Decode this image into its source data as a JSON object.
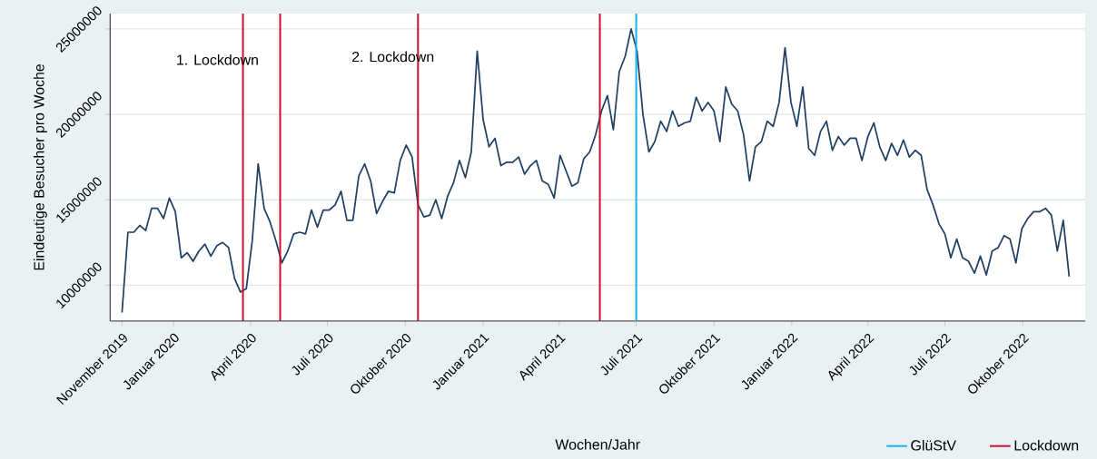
{
  "chart_data": {
    "type": "line",
    "xlabel": "Wochen/Jahr",
    "ylabel": "Eindeutige Besucher pro Woche",
    "x": [
      "2019-11-01",
      "2019-11-08",
      "2019-11-15",
      "2019-11-22",
      "2019-11-29",
      "2019-12-06",
      "2019-12-13",
      "2019-12-20",
      "2019-12-27",
      "2020-01-03",
      "2020-01-10",
      "2020-01-17",
      "2020-01-24",
      "2020-01-31",
      "2020-02-07",
      "2020-02-14",
      "2020-02-21",
      "2020-02-28",
      "2020-03-06",
      "2020-03-13",
      "2020-03-20",
      "2020-03-27",
      "2020-04-03",
      "2020-04-10",
      "2020-04-17",
      "2020-04-24",
      "2020-05-01",
      "2020-05-08",
      "2020-05-15",
      "2020-05-22",
      "2020-05-29",
      "2020-06-05",
      "2020-06-12",
      "2020-06-19",
      "2020-06-26",
      "2020-07-03",
      "2020-07-10",
      "2020-07-17",
      "2020-07-24",
      "2020-07-31",
      "2020-08-07",
      "2020-08-14",
      "2020-08-21",
      "2020-08-28",
      "2020-09-04",
      "2020-09-11",
      "2020-09-18",
      "2020-09-25",
      "2020-10-02",
      "2020-10-09",
      "2020-10-16",
      "2020-10-23",
      "2020-10-30",
      "2020-11-06",
      "2020-11-13",
      "2020-11-20",
      "2020-11-27",
      "2020-12-04",
      "2020-12-11",
      "2020-12-18",
      "2020-12-25",
      "2021-01-01",
      "2021-01-08",
      "2021-01-15",
      "2021-01-22",
      "2021-01-29",
      "2021-02-05",
      "2021-02-12",
      "2021-02-19",
      "2021-02-26",
      "2021-03-05",
      "2021-03-12",
      "2021-03-19",
      "2021-03-26",
      "2021-04-02",
      "2021-04-09",
      "2021-04-16",
      "2021-04-23",
      "2021-04-30",
      "2021-05-07",
      "2021-05-14",
      "2021-05-21",
      "2021-05-28",
      "2021-06-04",
      "2021-06-11",
      "2021-06-18",
      "2021-06-25",
      "2021-07-02",
      "2021-07-09",
      "2021-07-16",
      "2021-07-23",
      "2021-07-30",
      "2021-08-06",
      "2021-08-13",
      "2021-08-20",
      "2021-08-27",
      "2021-09-03",
      "2021-09-10",
      "2021-09-17",
      "2021-09-24",
      "2021-10-01",
      "2021-10-08",
      "2021-10-15",
      "2021-10-22",
      "2021-10-29",
      "2021-11-05",
      "2021-11-12",
      "2021-11-19",
      "2021-11-26",
      "2021-12-03",
      "2021-12-10",
      "2021-12-17",
      "2021-12-24",
      "2021-12-31",
      "2022-01-07",
      "2022-01-14",
      "2022-01-21",
      "2022-01-28",
      "2022-02-04",
      "2022-02-11",
      "2022-02-18",
      "2022-02-25",
      "2022-03-04",
      "2022-03-11",
      "2022-03-18",
      "2022-03-25",
      "2022-04-01",
      "2022-04-08",
      "2022-04-15",
      "2022-04-22",
      "2022-04-29",
      "2022-05-06",
      "2022-05-13",
      "2022-05-20",
      "2022-05-27",
      "2022-06-03",
      "2022-06-10",
      "2022-06-17",
      "2022-06-24",
      "2022-07-01",
      "2022-07-08",
      "2022-07-15",
      "2022-07-22",
      "2022-07-29",
      "2022-08-05",
      "2022-08-12",
      "2022-08-19",
      "2022-08-26",
      "2022-09-02",
      "2022-09-09",
      "2022-09-16",
      "2022-09-23",
      "2022-09-30",
      "2022-10-07",
      "2022-10-14",
      "2022-10-21",
      "2022-10-28",
      "2022-11-04",
      "2022-11-11",
      "2022-11-18",
      "2022-11-25"
    ],
    "series": [
      {
        "color": "#1f3f63",
        "values": [
          8400000,
          13100000,
          13100000,
          13500000,
          13200000,
          14500000,
          14500000,
          13900000,
          15100000,
          14300000,
          11600000,
          11900000,
          11400000,
          12000000,
          12400000,
          11700000,
          12300000,
          12500000,
          12200000,
          10400000,
          9600000,
          9800000,
          12600000,
          17100000,
          14500000,
          13700000,
          12600000,
          11300000,
          12000000,
          13000000,
          13100000,
          13000000,
          14400000,
          13400000,
          14400000,
          14400000,
          14700000,
          15500000,
          13800000,
          13800000,
          16400000,
          17100000,
          16100000,
          14200000,
          14900000,
          15500000,
          15400000,
          17300000,
          18200000,
          17500000,
          14700000,
          14000000,
          14100000,
          15000000,
          13900000,
          15200000,
          16000000,
          17300000,
          16300000,
          17800000,
          23700000,
          19700000,
          18100000,
          18600000,
          17000000,
          17200000,
          17200000,
          17500000,
          16500000,
          17000000,
          17300000,
          16100000,
          15900000,
          15100000,
          17600000,
          16700000,
          15800000,
          16000000,
          17400000,
          17800000,
          18800000,
          20200000,
          21100000,
          19100000,
          22500000,
          23400000,
          25000000,
          23700000,
          20000000,
          17800000,
          18400000,
          19600000,
          19000000,
          20200000,
          19300000,
          19500000,
          19600000,
          21000000,
          20200000,
          20700000,
          20200000,
          18400000,
          21600000,
          20600000,
          20200000,
          18800000,
          16100000,
          18100000,
          18400000,
          19600000,
          19300000,
          20700000,
          23900000,
          20700000,
          19300000,
          21600000,
          18000000,
          17600000,
          19000000,
          19600000,
          17900000,
          18700000,
          18200000,
          18600000,
          18600000,
          17300000,
          18700000,
          19500000,
          18100000,
          17300000,
          18300000,
          17600000,
          18500000,
          17500000,
          17900000,
          17600000,
          15600000,
          14700000,
          13600000,
          13000000,
          11600000,
          12700000,
          11600000,
          11400000,
          10700000,
          11700000,
          10600000,
          12000000,
          12200000,
          12900000,
          12700000,
          11300000,
          13300000,
          13900000,
          14300000,
          14300000,
          14500000,
          14100000,
          12000000,
          13800000,
          10500000
        ]
      }
    ],
    "xlim": [
      "2019-10-18",
      "2022-12-14"
    ],
    "xticks": [
      {
        "value": "2019-11-01",
        "label": "November 2019"
      },
      {
        "value": "2020-01-01",
        "label": "Januar 2020"
      },
      {
        "value": "2020-04-01",
        "label": "April 2020"
      },
      {
        "value": "2020-07-01",
        "label": "Juli 2020"
      },
      {
        "value": "2020-10-01",
        "label": "Oktober 2020"
      },
      {
        "value": "2021-01-01",
        "label": "Januar 2021"
      },
      {
        "value": "2021-04-01",
        "label": "April 2021"
      },
      {
        "value": "2021-07-01",
        "label": "Juli 2021"
      },
      {
        "value": "2021-10-01",
        "label": "Oktober 2021"
      },
      {
        "value": "2022-01-01",
        "label": "Januar 2022"
      },
      {
        "value": "2022-04-01",
        "label": "April 2022"
      },
      {
        "value": "2022-07-01",
        "label": "Juli 2022"
      },
      {
        "value": "2022-10-01",
        "label": "Oktober 2022"
      }
    ],
    "ylim": [
      7900000,
      25900000
    ],
    "yticks": [
      10000000,
      15000000,
      20000000,
      25000000
    ],
    "grid": "y",
    "line_style": "solid",
    "legend": "bottom right",
    "ref_lines": [
      {
        "axis": "x",
        "value": "2021-07-01",
        "label": "GlüStV",
        "color": "#1ab0f0"
      },
      {
        "axis": "x",
        "value": "2020-03-23",
        "label": "Lockdown",
        "color": "#c8102e"
      },
      {
        "axis": "x",
        "value": "2020-05-06",
        "color": "#c8102e"
      },
      {
        "axis": "x",
        "value": "2020-10-16",
        "color": "#c8102e"
      },
      {
        "axis": "x",
        "value": "2021-05-19",
        "color": "#c8102e"
      }
    ],
    "annotations": [
      "1. Lockdown",
      "2. Lockdown"
    ]
  }
}
